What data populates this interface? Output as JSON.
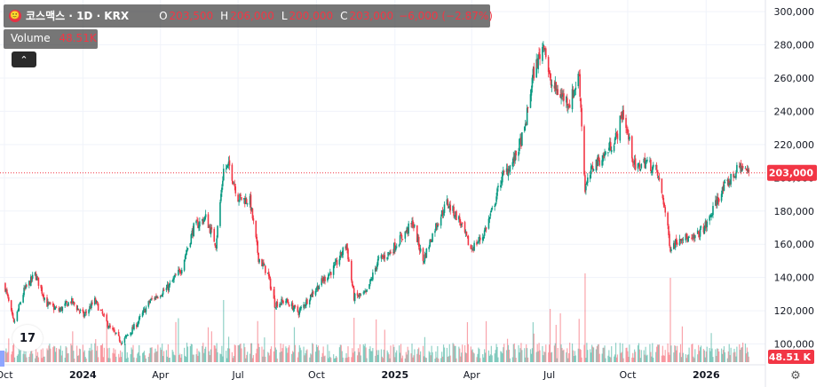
{
  "legend": {
    "symbol": "코스맥스 · 1D · KRX",
    "o_label": "O",
    "o_value": "203,500",
    "h_label": "H",
    "h_value": "206,000",
    "l_label": "L",
    "l_value": "200,000",
    "c_label": "C",
    "c_value": "203,000",
    "change": "−6,000 (−2.87%)",
    "volume_label": "Volume",
    "volume_value": "48.51K"
  },
  "collapse_icon": "chevron-up-icon",
  "logo_text": "17",
  "gear_icon": "gear-icon",
  "chart_data": {
    "type": "candlestick",
    "title": "",
    "xlabel": "",
    "ylabel": "",
    "ylim": [
      88000,
      307000
    ],
    "y_ticks": [
      100000,
      120000,
      140000,
      160000,
      180000,
      200000,
      220000,
      240000,
      260000,
      280000,
      300000
    ],
    "y_tick_labels": [
      "100,000",
      "120,000",
      "140,000",
      "160,000",
      "180,000",
      "200,000",
      "220,000",
      "240,000",
      "260,000",
      "280,000",
      "300,000"
    ],
    "x_range": [
      "2023-10-01",
      "2026-02-28"
    ],
    "x_ticks": [
      "2023-10-01",
      "2024-01-01",
      "2024-04-01",
      "2024-07-01",
      "2024-10-01",
      "2025-01-01",
      "2025-04-01",
      "2025-07-01",
      "2025-10-01",
      "2026-01-01"
    ],
    "x_tick_labels": [
      "Oct",
      "2024",
      "Apr",
      "Jul",
      "Oct",
      "2025",
      "Apr",
      "Jul",
      "Oct",
      "2026"
    ],
    "last_price": 203000,
    "last_price_label": "203,000",
    "last_volume_label": "48.51 K",
    "price_path": [
      [
        "2023-10-01",
        136000
      ],
      [
        "2023-10-12",
        112000
      ],
      [
        "2023-10-24",
        132000
      ],
      [
        "2023-11-06",
        142000
      ],
      [
        "2023-11-20",
        124000
      ],
      [
        "2023-12-04",
        120000
      ],
      [
        "2023-12-18",
        126000
      ],
      [
        "2024-01-02",
        117000
      ],
      [
        "2024-01-15",
        126000
      ],
      [
        "2024-02-01",
        110000
      ],
      [
        "2024-02-16",
        101000
      ],
      [
        "2024-03-04",
        112000
      ],
      [
        "2024-03-20",
        126000
      ],
      [
        "2024-04-10",
        134000
      ],
      [
        "2024-04-25",
        145000
      ],
      [
        "2024-05-10",
        170000
      ],
      [
        "2024-05-24",
        176000
      ],
      [
        "2024-06-05",
        160000
      ],
      [
        "2024-06-14",
        205000
      ],
      [
        "2024-06-21",
        207000
      ],
      [
        "2024-07-01",
        188000
      ],
      [
        "2024-07-15",
        186000
      ],
      [
        "2024-07-25",
        152000
      ],
      [
        "2024-08-05",
        142000
      ],
      [
        "2024-08-13",
        124000
      ],
      [
        "2024-08-26",
        126000
      ],
      [
        "2024-09-10",
        119000
      ],
      [
        "2024-09-25",
        130000
      ],
      [
        "2024-10-08",
        138000
      ],
      [
        "2024-10-22",
        146000
      ],
      [
        "2024-11-05",
        160000
      ],
      [
        "2024-11-14",
        128000
      ],
      [
        "2024-11-28",
        130000
      ],
      [
        "2024-12-12",
        150000
      ],
      [
        "2024-12-26",
        155000
      ],
      [
        "2025-01-10",
        165000
      ],
      [
        "2025-01-22",
        173000
      ],
      [
        "2025-02-03",
        150000
      ],
      [
        "2025-02-17",
        170000
      ],
      [
        "2025-03-03",
        185000
      ],
      [
        "2025-03-17",
        175000
      ],
      [
        "2025-03-31",
        157000
      ],
      [
        "2025-04-14",
        165000
      ],
      [
        "2025-04-25",
        180000
      ],
      [
        "2025-05-06",
        200000
      ],
      [
        "2025-05-20",
        210000
      ],
      [
        "2025-06-02",
        228000
      ],
      [
        "2025-06-12",
        262000
      ],
      [
        "2025-06-25",
        282000
      ],
      [
        "2025-07-02",
        257000
      ],
      [
        "2025-07-14",
        250000
      ],
      [
        "2025-07-25",
        245000
      ],
      [
        "2025-08-05",
        262000
      ],
      [
        "2025-08-12",
        193000
      ],
      [
        "2025-08-22",
        208000
      ],
      [
        "2025-09-03",
        213000
      ],
      [
        "2025-09-18",
        225000
      ],
      [
        "2025-09-25",
        240000
      ],
      [
        "2025-10-10",
        205000
      ],
      [
        "2025-10-22",
        210000
      ],
      [
        "2025-11-04",
        204000
      ],
      [
        "2025-11-12",
        186000
      ],
      [
        "2025-11-20",
        158000
      ],
      [
        "2025-12-03",
        165000
      ],
      [
        "2025-12-15",
        162000
      ],
      [
        "2026-01-02",
        172000
      ],
      [
        "2026-01-15",
        188000
      ],
      [
        "2026-01-28",
        198000
      ],
      [
        "2026-02-10",
        207000
      ],
      [
        "2026-02-20",
        203000
      ]
    ],
    "volume_spikes": [
      [
        "2024-06-14",
        0.7
      ],
      [
        "2024-08-13",
        0.85
      ],
      [
        "2025-07-14",
        0.55
      ],
      [
        "2025-08-12",
        1.0
      ],
      [
        "2025-11-20",
        0.95
      ],
      [
        "2025-07-02",
        0.6
      ],
      [
        "2024-11-14",
        0.5
      ],
      [
        "2025-06-12",
        0.45
      ]
    ]
  }
}
